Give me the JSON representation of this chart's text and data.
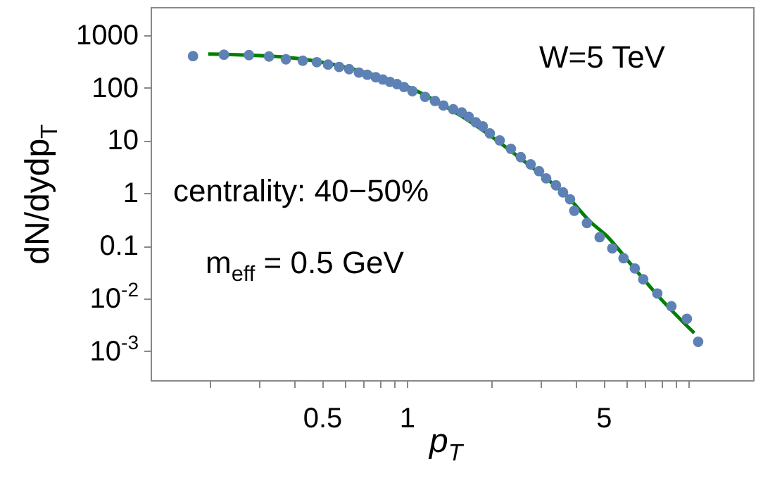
{
  "chart_data": {
    "type": "scatter",
    "xlabel": "p$_{T}$",
    "ylabel": "dN/dydp$_{T}$",
    "annotations": [
      "W=5 TeV",
      "centrality: 40−50%",
      "m$_{eff}$ = 0.5 GeV"
    ],
    "log": "xy",
    "grid": false,
    "xlim": [
      0.123,
      17
    ],
    "ylim": [
      0.00028,
      3400
    ],
    "xticks": [
      {
        "value": 0.2,
        "label": null
      },
      {
        "value": 0.3,
        "label": null
      },
      {
        "value": 0.4,
        "label": null
      },
      {
        "value": 0.5,
        "label": "0.5"
      },
      {
        "value": 0.6,
        "label": null
      },
      {
        "value": 0.7,
        "label": null
      },
      {
        "value": 0.8,
        "label": null
      },
      {
        "value": 0.9,
        "label": null
      },
      {
        "value": 1,
        "label": "1"
      },
      {
        "value": 2,
        "label": null
      },
      {
        "value": 3,
        "label": null
      },
      {
        "value": 4,
        "label": null
      },
      {
        "value": 5,
        "label": "5"
      },
      {
        "value": 6,
        "label": null
      },
      {
        "value": 7,
        "label": null
      },
      {
        "value": 8,
        "label": null
      },
      {
        "value": 9,
        "label": null
      },
      {
        "value": 10,
        "label": null
      }
    ],
    "yticks": [
      {
        "value": 0.001,
        "label": "10$^{-3}$"
      },
      {
        "value": 0.01,
        "label": "10$^{-2}$"
      },
      0.1,
      1,
      10,
      100,
      1000
    ],
    "series": [
      {
        "type": "scatter",
        "marker": "circle",
        "color": "#5e81b5",
        "x": [
          0.174,
          0.224,
          0.275,
          0.324,
          0.372,
          0.427,
          0.479,
          0.525,
          0.575,
          0.624,
          0.676,
          0.724,
          0.776,
          0.822,
          0.871,
          0.923,
          0.977,
          1.047,
          1.161,
          1.259,
          1.349,
          1.462,
          1.567,
          1.66,
          1.758,
          1.862,
          1.972,
          2.138,
          2.344,
          2.541,
          2.754,
          2.951,
          3.126,
          3.388,
          3.589,
          3.802,
          3.936,
          4.365,
          4.842,
          5.37,
          5.888,
          6.457,
          6.918,
          7.762,
          8.71,
          9.886,
          10.84
        ],
        "values": [
          398,
          424,
          416,
          391,
          346,
          325,
          305,
          275,
          248,
          225,
          194,
          176,
          158,
          143,
          129,
          117,
          103,
          86,
          67,
          56,
          46,
          39,
          34,
          28,
          22,
          18.5,
          13.6,
          10,
          6.9,
          4.8,
          3.5,
          2.6,
          1.9,
          1.4,
          1.03,
          0.76,
          0.46,
          0.27,
          0.145,
          0.089,
          0.058,
          0.037,
          0.023,
          0.0124,
          0.0071,
          0.0041,
          0.0015
        ]
      },
      {
        "type": "line",
        "color": "#008000",
        "line_style": "solid",
        "x": [
          0.197,
          0.359,
          0.638,
          1.01,
          1.6,
          2.54,
          3.8,
          4.5,
          5.07,
          6.36,
          8.0,
          10.5
        ],
        "values": [
          437,
          386,
          229,
          103,
          26.7,
          4.5,
          0.76,
          0.28,
          0.163,
          0.04,
          0.0097,
          0.0022
        ]
      }
    ]
  }
}
